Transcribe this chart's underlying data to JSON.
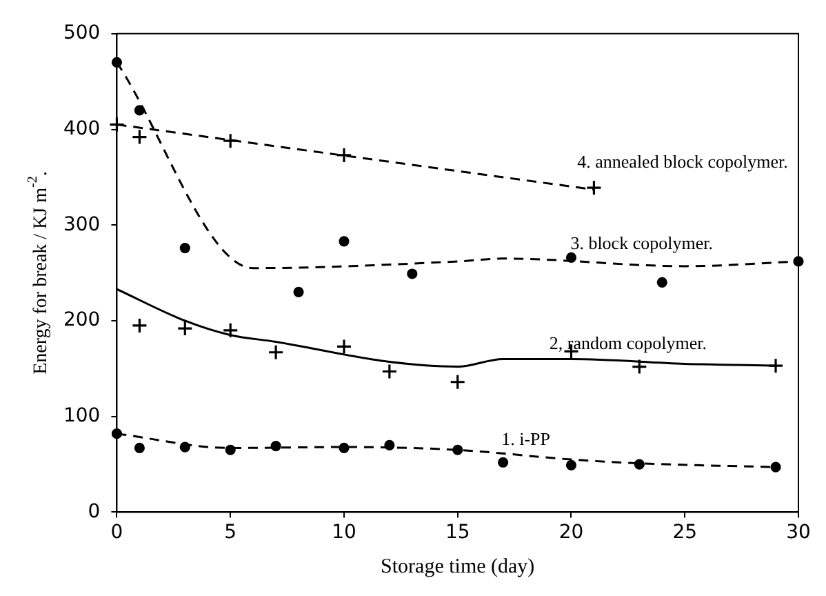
{
  "chart_data": {
    "type": "scatter",
    "xlabel": "Storage time (day)",
    "ylabel": "Energy for break / KJ m$^{-2}$.",
    "xlim": [
      0,
      30
    ],
    "xticks": [
      0,
      5,
      10,
      15,
      20,
      25,
      30
    ],
    "ylim": [
      0,
      500
    ],
    "yticks": [
      0,
      100,
      200,
      300,
      400,
      500
    ],
    "grid": false,
    "series": [
      {
        "type": "line",
        "color": "#000000",
        "line_style": "dashed",
        "marker": "none",
        "x": [
          0,
          5,
          10,
          15,
          20,
          23,
          29
        ],
        "values": [
          82,
          67,
          68,
          65,
          55,
          51,
          47
        ]
      },
      {
        "type": "scatter",
        "color": "#000000",
        "marker": "circle",
        "x": [
          0,
          1,
          3,
          5,
          7,
          10,
          12,
          15,
          17,
          20,
          23,
          29
        ],
        "values": [
          82,
          67,
          68,
          65,
          69,
          67,
          70,
          65,
          52,
          49,
          50,
          47
        ]
      },
      {
        "type": "line",
        "color": "#000000",
        "line_style": "solid",
        "marker": "none",
        "x": [
          0,
          3,
          5,
          7,
          12,
          15,
          17,
          20,
          25,
          29
        ],
        "values": [
          233,
          200,
          185,
          178,
          157,
          152,
          160,
          160,
          155,
          153
        ]
      },
      {
        "type": "scatter",
        "color": "#000000",
        "marker": "cross",
        "x": [
          1,
          3,
          5,
          7,
          10,
          12,
          15,
          20,
          23,
          29
        ],
        "values": [
          195,
          192,
          190,
          167,
          173,
          147,
          136,
          168,
          152,
          153
        ]
      },
      {
        "type": "line",
        "color": "#000000",
        "line_style": "dashed",
        "marker": "none",
        "x": [
          0,
          6,
          15,
          17,
          25,
          30
        ],
        "values": [
          470,
          255,
          262,
          265,
          257,
          262
        ]
      },
      {
        "type": "scatter",
        "color": "#000000",
        "marker": "circle",
        "x": [
          0,
          1,
          3,
          8,
          10,
          13,
          20,
          24,
          30
        ],
        "values": [
          470,
          420,
          276,
          230,
          283,
          249,
          266,
          240,
          262
        ]
      },
      {
        "type": "line",
        "color": "#000000",
        "line_style": "dashed",
        "marker": "none",
        "x": [
          0,
          21
        ],
        "values": [
          405,
          337
        ]
      },
      {
        "type": "scatter",
        "color": "#000000",
        "marker": "cross",
        "x": [
          0,
          1,
          5,
          10,
          21
        ],
        "values": [
          405,
          392,
          388,
          373,
          339
        ]
      }
    ],
    "annotations": [
      "4. annealed block copolymer.",
      "3. block copolymer.",
      "2, random copolymer.",
      "1. i-PP"
    ]
  }
}
